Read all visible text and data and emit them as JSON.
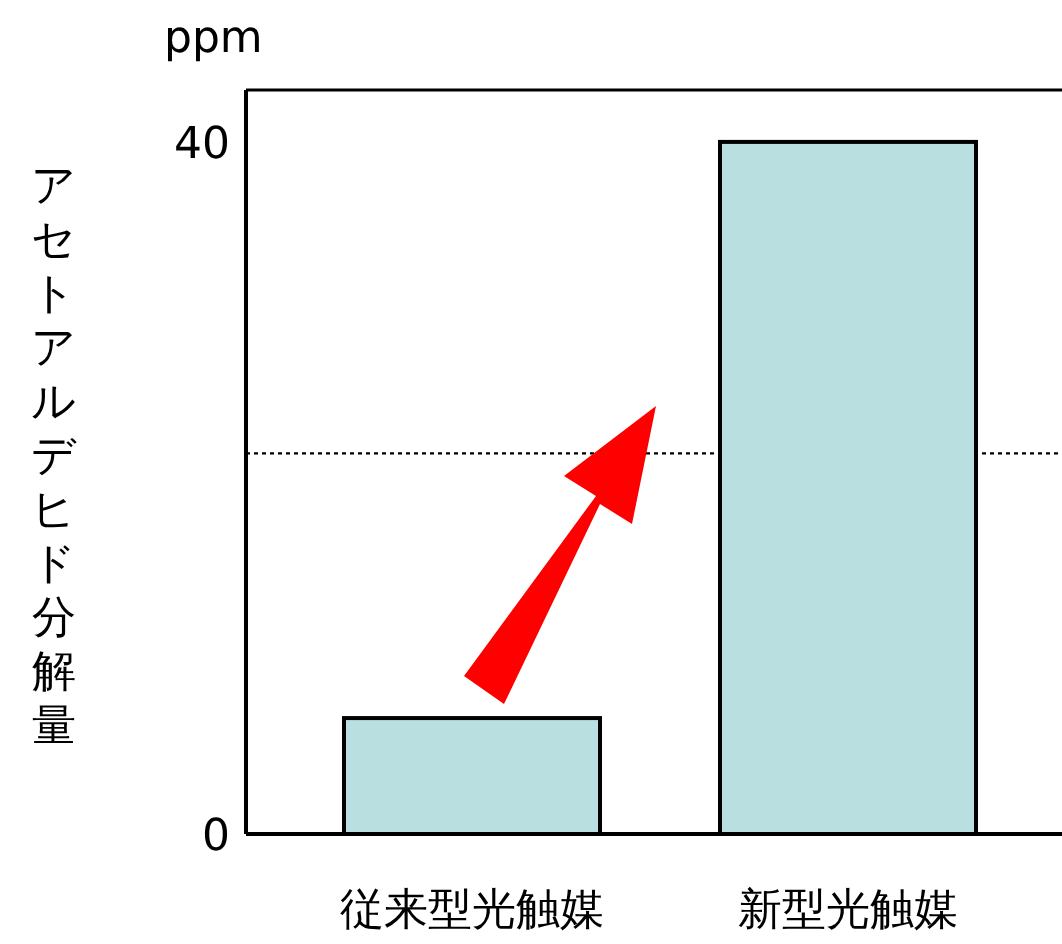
{
  "chart_data": {
    "type": "bar",
    "ylabel": "アセトアルデヒド分解量",
    "annotations": [
      "ppm"
    ],
    "categories": [
      "従来型光触媒",
      "新型光触媒"
    ],
    "values": [
      6.7,
      40
    ],
    "color": "#b9dfe0",
    "ylim": [
      0,
      43
    ],
    "yticks": [
      0,
      40
    ],
    "grid": false,
    "ref_lines": [
      {
        "axis": "y",
        "value": 22,
        "line_style": "dotted",
        "color": "#000000"
      }
    ]
  }
}
